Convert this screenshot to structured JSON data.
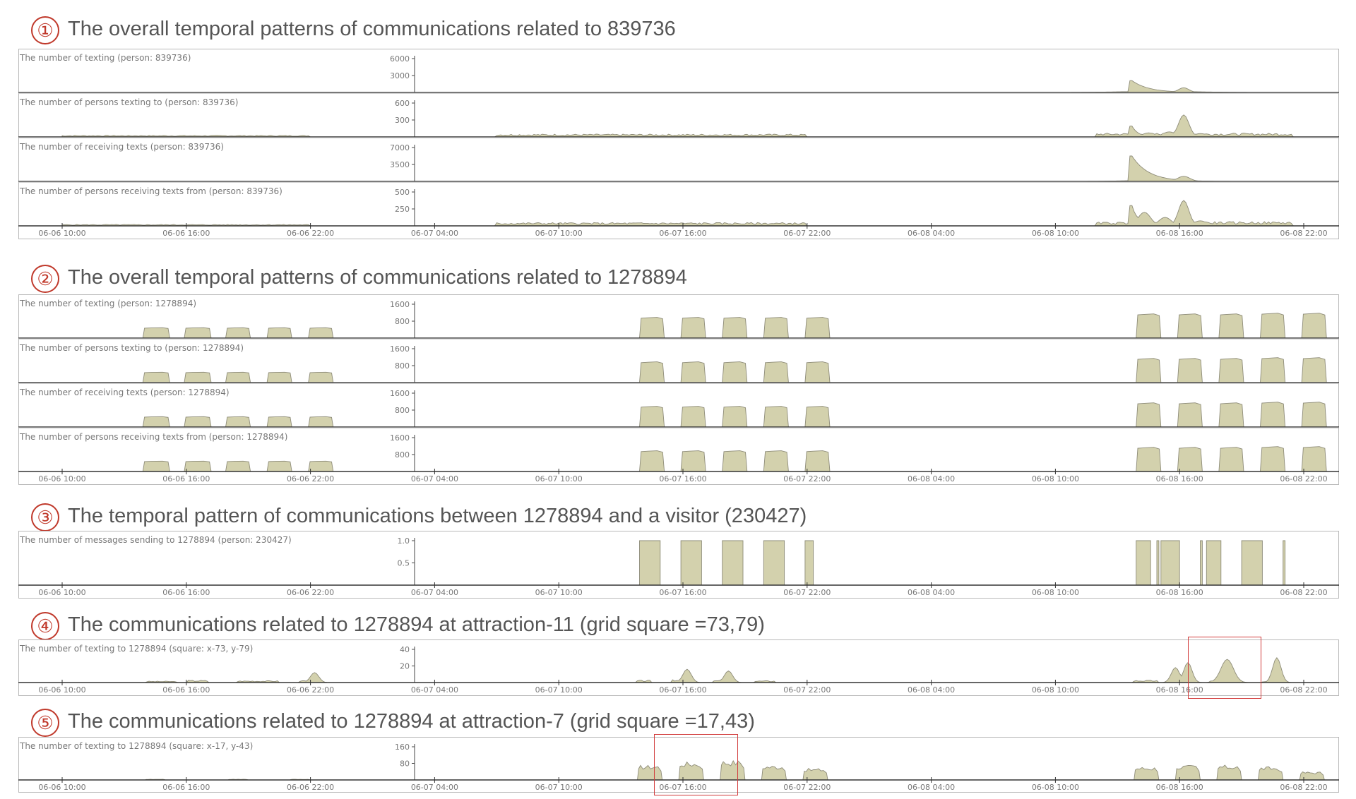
{
  "colors": {
    "fill": "#d3d1ad",
    "stroke": "#8e8c79",
    "title": "#555555",
    "number": "#c0392b",
    "highlight": "#d23b3b"
  },
  "x_axis_ticks": [
    "06-06 10:00",
    "06-06 16:00",
    "06-06 22:00",
    "06-07 04:00",
    "06-07 10:00",
    "06-07 16:00",
    "06-07 22:00",
    "06-08 04:00",
    "06-08 10:00",
    "06-08 16:00",
    "06-08 22:00"
  ],
  "sections": [
    {
      "number": "①",
      "title": "The overall temporal patterns of communications related to 839736",
      "charts": [
        {
          "label": "The number of texting (person: 839736)",
          "yticks": [
            "6000",
            "3000"
          ],
          "ymax": 6000,
          "shape": {
            "type": "spiky",
            "seed": 11,
            "base": 0.005,
            "activity": [
              [
                60.6,
                61.8,
                0.002
              ]
            ],
            "spikes": [
              [
                61.7,
                0.8,
                0.35,
                "left"
              ],
              [
                62.4,
                0.3,
                0.06,
                "sym"
              ],
              [
                64.2,
                0.25,
                0.14,
                "sym"
              ],
              [
                63.0,
                2.0,
                0.03,
                "sym"
              ]
            ]
          }
        },
        {
          "label": "The number of persons texting to (person: 839736)",
          "yticks": [
            "600",
            "300"
          ],
          "ymax": 600,
          "shape": {
            "type": "spiky",
            "seed": 7,
            "base": 0.05,
            "activity": [
              [
                9,
                22,
                0.035
              ],
              [
                31,
                46,
                0.06
              ],
              [
                60,
                61.7,
                0.08
              ],
              [
                62,
                69.5,
                0.08
              ]
            ],
            "spikes": [
              [
                61.7,
                0.3,
                0.32,
                "left"
              ],
              [
                62.5,
                0.3,
                0.12,
                "sym"
              ],
              [
                63.5,
                0.3,
                0.15,
                "sym"
              ],
              [
                64.2,
                0.25,
                0.65,
                "sym"
              ],
              [
                65,
                0.3,
                0.1,
                "sym"
              ]
            ]
          }
        },
        {
          "label": "The number of receiving texts (person: 839736)",
          "yticks": [
            "7000",
            "3500"
          ],
          "ymax": 7000,
          "shape": {
            "type": "spiky",
            "seed": 13,
            "base": 0.005,
            "activity": [
              [
                61.6,
                64.8,
                0.01
              ]
            ],
            "spikes": [
              [
                61.7,
                0.8,
                0.75,
                "left"
              ],
              [
                64.2,
                0.3,
                0.15,
                "sym"
              ],
              [
                63,
                1.6,
                0.03,
                "sym"
              ]
            ]
          }
        },
        {
          "label": "The number of persons receiving texts from (person: 839736)",
          "yticks": [
            "500",
            "250"
          ],
          "ymax": 500,
          "shape": {
            "type": "spiky",
            "seed": 5,
            "base": 0.05,
            "activity": [
              [
                9,
                22,
                0.03
              ],
              [
                31,
                46,
                0.07
              ],
              [
                60,
                61.7,
                0.08
              ],
              [
                62,
                69.5,
                0.09
              ]
            ],
            "spikes": [
              [
                61.7,
                0.3,
                0.6,
                "left"
              ],
              [
                62.3,
                0.3,
                0.4,
                "sym"
              ],
              [
                63.3,
                0.3,
                0.25,
                "sym"
              ],
              [
                64.2,
                0.25,
                0.75,
                "sym"
              ],
              [
                65,
                0.3,
                0.15,
                "sym"
              ]
            ]
          }
        }
      ]
    },
    {
      "number": "②",
      "title": "The overall temporal patterns of communications related to 1278894",
      "charts": [
        {
          "label": "The number of texting (person: 1278894)",
          "yticks": [
            "1600",
            "800"
          ],
          "ymax": 1600,
          "shape": {
            "type": "blocks",
            "blocks": [
              [
                13.9,
                15.2,
                0.3
              ],
              [
                15.9,
                17.2,
                0.3
              ],
              [
                17.9,
                19.1,
                0.3
              ],
              [
                19.9,
                21.1,
                0.3
              ],
              [
                21.9,
                23.1,
                0.3
              ],
              [
                37.9,
                39.1,
                0.6
              ],
              [
                39.9,
                41.1,
                0.6
              ],
              [
                41.9,
                43.1,
                0.6
              ],
              [
                43.9,
                45.1,
                0.6
              ],
              [
                45.9,
                47.1,
                0.6
              ],
              [
                61.9,
                63.1,
                0.7
              ],
              [
                63.9,
                65.1,
                0.7
              ],
              [
                65.9,
                67.1,
                0.7
              ],
              [
                67.9,
                69.1,
                0.72
              ],
              [
                69.9,
                71.1,
                0.72
              ]
            ]
          }
        },
        {
          "label": "The number of persons texting to (person: 1278894)",
          "yticks": [
            "1600",
            "800"
          ],
          "ymax": 1600,
          "shape": {
            "type": "blocks",
            "blocks": [
              [
                13.9,
                15.2,
                0.3
              ],
              [
                15.9,
                17.2,
                0.3
              ],
              [
                17.9,
                19.1,
                0.3
              ],
              [
                19.9,
                21.1,
                0.3
              ],
              [
                21.9,
                23.1,
                0.3
              ],
              [
                37.9,
                39.1,
                0.6
              ],
              [
                39.9,
                41.1,
                0.6
              ],
              [
                41.9,
                43.1,
                0.6
              ],
              [
                43.9,
                45.1,
                0.6
              ],
              [
                45.9,
                47.1,
                0.6
              ],
              [
                61.9,
                63.1,
                0.7
              ],
              [
                63.9,
                65.1,
                0.7
              ],
              [
                65.9,
                67.1,
                0.7
              ],
              [
                67.9,
                69.1,
                0.72
              ],
              [
                69.9,
                71.1,
                0.72
              ]
            ]
          }
        },
        {
          "label": "The number of receiving texts (person: 1278894)",
          "yticks": [
            "1600",
            "800"
          ],
          "ymax": 1600,
          "shape": {
            "type": "blocks",
            "blocks": [
              [
                13.9,
                15.2,
                0.3
              ],
              [
                15.9,
                17.2,
                0.3
              ],
              [
                17.9,
                19.1,
                0.3
              ],
              [
                19.9,
                21.1,
                0.3
              ],
              [
                21.9,
                23.1,
                0.3
              ],
              [
                37.9,
                39.1,
                0.6
              ],
              [
                39.9,
                41.1,
                0.6
              ],
              [
                41.9,
                43.1,
                0.6
              ],
              [
                43.9,
                45.1,
                0.6
              ],
              [
                45.9,
                47.1,
                0.6
              ],
              [
                61.9,
                63.1,
                0.7
              ],
              [
                63.9,
                65.1,
                0.7
              ],
              [
                65.9,
                67.1,
                0.7
              ],
              [
                67.9,
                69.1,
                0.72
              ],
              [
                69.9,
                71.1,
                0.72
              ]
            ]
          }
        },
        {
          "label": "The number of persons receiving texts from (person: 1278894)",
          "yticks": [
            "1600",
            "800"
          ],
          "ymax": 1600,
          "shape": {
            "type": "blocks",
            "blocks": [
              [
                13.9,
                15.2,
                0.3
              ],
              [
                15.9,
                17.2,
                0.3
              ],
              [
                17.9,
                19.1,
                0.3
              ],
              [
                19.9,
                21.1,
                0.3
              ],
              [
                21.9,
                23.1,
                0.3
              ],
              [
                37.9,
                39.1,
                0.6
              ],
              [
                39.9,
                41.1,
                0.6
              ],
              [
                41.9,
                43.1,
                0.6
              ],
              [
                43.9,
                45.1,
                0.6
              ],
              [
                45.9,
                47.1,
                0.6
              ],
              [
                61.9,
                63.1,
                0.7
              ],
              [
                63.9,
                65.1,
                0.7
              ],
              [
                65.9,
                67.1,
                0.7
              ],
              [
                67.9,
                69.1,
                0.72
              ],
              [
                69.9,
                71.1,
                0.72
              ]
            ]
          }
        }
      ]
    },
    {
      "number": "③",
      "title": "The temporal pattern of communications between 1278894 and a visitor (230427)",
      "charts": [
        {
          "label": "The number of messages sending to 1278894 (person: 230427)",
          "yticks": [
            "1.0",
            "0.5"
          ],
          "ymax": 1.0,
          "shape": {
            "type": "pulses",
            "pulses": [
              [
                37.9,
                38.9
              ],
              [
                39.9,
                40.9
              ],
              [
                41.9,
                42.9
              ],
              [
                43.9,
                44.9
              ],
              [
                45.9,
                46.3
              ],
              [
                61.9,
                62.6
              ],
              [
                62.9,
                63.0
              ],
              [
                63.1,
                64.0
              ],
              [
                65.0,
                65.1
              ],
              [
                65.3,
                66.0
              ],
              [
                67.0,
                68.0
              ],
              [
                69.0,
                69.1
              ]
            ]
          }
        }
      ]
    },
    {
      "number": "④",
      "title": "The communications related to 1278894 at attraction-11 (grid square =73,79)",
      "charts": [
        {
          "label": "The number of texting to 1278894 (square: x-73, y-79)",
          "yticks": [
            "40",
            "20"
          ],
          "ymax": 40,
          "shape": {
            "type": "spiky",
            "seed": 3,
            "base": 0.0,
            "activity": [
              [
                14.0,
                15.5,
                0.03
              ],
              [
                16.0,
                17.0,
                0.05
              ],
              [
                18.5,
                20.5,
                0.04
              ],
              [
                21.5,
                22.5,
                0.05
              ],
              [
                37.8,
                38.5,
                0.05
              ],
              [
                39.5,
                40.5,
                0.06
              ],
              [
                41.5,
                42.5,
                0.05
              ],
              [
                43.5,
                44.5,
                0.04
              ],
              [
                61.8,
                63.0,
                0.05
              ],
              [
                63.5,
                64.5,
                0.08
              ],
              [
                65.5,
                66.7,
                0.04
              ],
              [
                68.0,
                68.7,
                0.03
              ]
            ],
            "spikes": [
              [
                22.2,
                0.2,
                0.3,
                "sym"
              ],
              [
                40.2,
                0.2,
                0.4,
                "sym"
              ],
              [
                42.2,
                0.2,
                0.35,
                "sym"
              ],
              [
                63.8,
                0.2,
                0.45,
                "sym"
              ],
              [
                64.4,
                0.2,
                0.6,
                "sym"
              ],
              [
                66.3,
                0.3,
                0.7,
                "sym"
              ],
              [
                68.7,
                0.2,
                0.75,
                "sym"
              ]
            ]
          },
          "highlight": [
            64.4,
            67.9
          ]
        }
      ]
    },
    {
      "number": "⑤",
      "title": "The communications related to 1278894 at attraction-7 (grid square =17,43)",
      "charts": [
        {
          "label": "The number of texting to 1278894 (square: x-17, y-43)",
          "yticks": [
            "160",
            "80"
          ],
          "ymax": 160,
          "shape": {
            "type": "blocks_rough",
            "blocks": [
              [
                37.8,
                39.0,
                0.45
              ],
              [
                39.8,
                41.0,
                0.55
              ],
              [
                41.8,
                43.0,
                0.6
              ],
              [
                43.8,
                45.0,
                0.45
              ],
              [
                45.8,
                47.0,
                0.35
              ],
              [
                61.8,
                63.0,
                0.4
              ],
              [
                63.8,
                65.0,
                0.45
              ],
              [
                65.8,
                67.0,
                0.45
              ],
              [
                67.8,
                69.0,
                0.4
              ],
              [
                69.8,
                71.0,
                0.25
              ],
              [
                14.0,
                15.0,
                0.02
              ],
              [
                18.0,
                19.0,
                0.02
              ],
              [
                21.0,
                22.0,
                0.02
              ]
            ]
          },
          "highlight": [
            38.6,
            42.6
          ]
        }
      ]
    }
  ]
}
